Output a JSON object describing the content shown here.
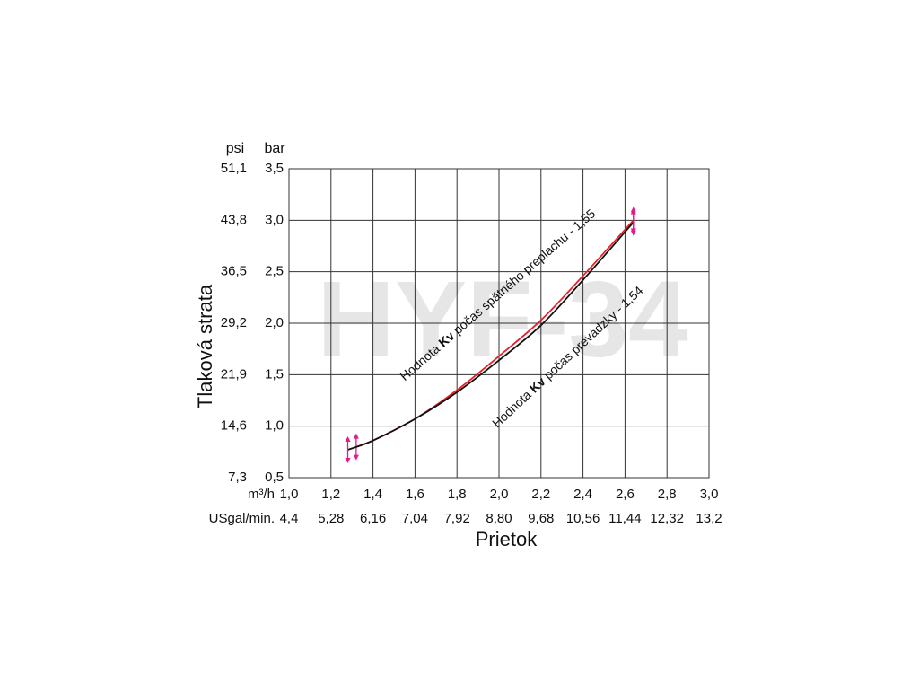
{
  "chart_data": {
    "type": "line",
    "watermark": "HYF-34",
    "x_label": "Prietok",
    "y_label": "Tlaková strata",
    "x_unit": "m³/h",
    "x2_unit": "USgal/min.",
    "y_unit": "bar",
    "y2_unit": "psi",
    "xlim": [
      1.0,
      3.0
    ],
    "xticks": [
      {
        "value": 1.0,
        "label": "1,0"
      },
      {
        "value": 1.2,
        "label": "1,2"
      },
      {
        "value": 1.4,
        "label": "1,4"
      },
      {
        "value": 1.6,
        "label": "1,6"
      },
      {
        "value": 1.8,
        "label": "1,8"
      },
      {
        "value": 2.0,
        "label": "2,0"
      },
      {
        "value": 2.2,
        "label": "2,2"
      },
      {
        "value": 2.4,
        "label": "2,4"
      },
      {
        "value": 2.6,
        "label": "2,6"
      },
      {
        "value": 2.8,
        "label": "2,8"
      },
      {
        "value": 3.0,
        "label": "3,0"
      }
    ],
    "x2lim": [
      4.4,
      13.2
    ],
    "x2ticks": [
      {
        "value": 4.4,
        "label": "4,4"
      },
      {
        "value": 5.28,
        "label": "5,28"
      },
      {
        "value": 6.16,
        "label": "6,16"
      },
      {
        "value": 7.04,
        "label": "7,04"
      },
      {
        "value": 7.92,
        "label": "7,92"
      },
      {
        "value": 8.8,
        "label": "8,80"
      },
      {
        "value": 9.68,
        "label": "9,68"
      },
      {
        "value": 10.56,
        "label": "10,56"
      },
      {
        "value": 11.44,
        "label": "11,44"
      },
      {
        "value": 12.32,
        "label": "12,32"
      },
      {
        "value": 13.2,
        "label": "13,2"
      }
    ],
    "ylim": [
      0.5,
      3.5
    ],
    "yticks": [
      {
        "value": 0.5,
        "label": "0,5"
      },
      {
        "value": 1.0,
        "label": "1,0"
      },
      {
        "value": 1.5,
        "label": "1,5"
      },
      {
        "value": 2.0,
        "label": "2,0"
      },
      {
        "value": 2.5,
        "label": "2,5"
      },
      {
        "value": 3.0,
        "label": "3,0"
      },
      {
        "value": 3.5,
        "label": "3,5"
      }
    ],
    "y2lim": [
      7.3,
      51.1
    ],
    "y2ticks": [
      {
        "value": 7.3,
        "label": "7,3"
      },
      {
        "value": 14.6,
        "label": "14,6"
      },
      {
        "value": 21.9,
        "label": "21,9"
      },
      {
        "value": 29.2,
        "label": "29,2"
      },
      {
        "value": 36.5,
        "label": "36,5"
      },
      {
        "value": 43.8,
        "label": "43,8"
      },
      {
        "value": 51.1,
        "label": "51,1"
      }
    ],
    "grid": true,
    "series": [
      {
        "color": "#e8202a",
        "label": [
          "Hodnota ",
          "Kv",
          " počas spätného preplachu - 1,55"
        ],
        "x": [
          1.32,
          1.4,
          1.6,
          1.8,
          2.0,
          2.2,
          2.4,
          2.64
        ],
        "values": [
          0.8,
          0.86,
          1.07,
          1.35,
          1.68,
          2.03,
          2.46,
          3.0
        ]
      },
      {
        "color": "#111111",
        "label": [
          "Hodnota ",
          "Kv",
          " počas prevádzky - 1,54"
        ],
        "x": [
          1.28,
          1.4,
          1.6,
          1.8,
          2.0,
          2.2,
          2.4,
          2.64
        ],
        "values": [
          0.77,
          0.86,
          1.07,
          1.33,
          1.64,
          1.98,
          2.42,
          2.98
        ]
      }
    ],
    "endpoint_marker_color": "#e6198c"
  }
}
